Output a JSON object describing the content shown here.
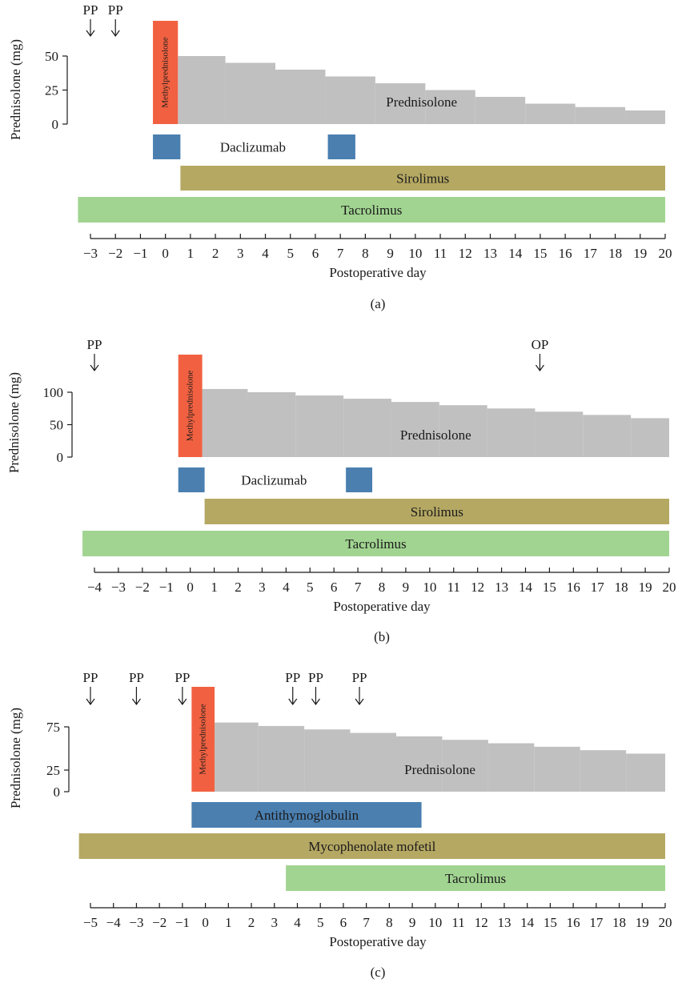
{
  "chart_data": [
    {
      "type": "timeline",
      "panel_label": "(a)",
      "ylabel": "Prednisolone (mg)",
      "xlabel": "Postoperative day",
      "y_ticks": [
        0,
        25,
        50
      ],
      "ylim": [
        0,
        60
      ],
      "x_ticks": [
        -3,
        -2,
        -1,
        0,
        1,
        2,
        3,
        4,
        5,
        6,
        7,
        8,
        9,
        10,
        11,
        12,
        13,
        14,
        15,
        16,
        17,
        18,
        19,
        20
      ],
      "x_tick_labels": [
        "−3",
        "−2",
        "−1",
        "0",
        "1",
        "2",
        "3",
        "4",
        "5",
        "6",
        "7",
        "8",
        "9",
        "10",
        "11",
        "12",
        "13",
        "14",
        "15",
        "16",
        "17",
        "18",
        "19",
        "20"
      ],
      "xlim": [
        -3.5,
        20
      ],
      "events": [
        {
          "label": "PP",
          "day": -3
        },
        {
          "label": "PP",
          "day": -2
        }
      ],
      "methylprednisolone": {
        "label": "Methylprednisolone",
        "start": -0.5,
        "end": 0.5
      },
      "prednisolone": {
        "label": "Prednisolone",
        "steps": [
          {
            "start": 0.5,
            "end": 2.4,
            "dose": 50
          },
          {
            "start": 2.4,
            "end": 4.4,
            "dose": 45
          },
          {
            "start": 4.4,
            "end": 6.4,
            "dose": 40
          },
          {
            "start": 6.4,
            "end": 8.4,
            "dose": 35
          },
          {
            "start": 8.4,
            "end": 10.4,
            "dose": 30
          },
          {
            "start": 10.4,
            "end": 12.4,
            "dose": 25
          },
          {
            "start": 12.4,
            "end": 14.4,
            "dose": 20
          },
          {
            "start": 14.4,
            "end": 16.4,
            "dose": 15
          },
          {
            "start": 16.4,
            "end": 18.4,
            "dose": 12.5
          },
          {
            "start": 18.4,
            "end": 20,
            "dose": 10
          }
        ]
      },
      "rows": [
        {
          "label": "Daclizumab",
          "segments": [
            {
              "start": -0.5,
              "end": 0.6
            },
            {
              "start": 6.5,
              "end": 7.6
            }
          ],
          "label_at": 3.5,
          "label_outside": true
        },
        {
          "label": "Sirolimus",
          "segments": [
            {
              "start": 0.6,
              "end": 20
            }
          ]
        },
        {
          "label": "Tacrolimus",
          "segments": [
            {
              "start": -3.5,
              "end": 20
            }
          ]
        }
      ]
    },
    {
      "type": "timeline",
      "panel_label": "(b)",
      "ylabel": "Prednisolone (mg)",
      "xlabel": "Postoperative day",
      "y_ticks": [
        0,
        50,
        100
      ],
      "ylim": [
        0,
        120
      ],
      "x_ticks": [
        -4,
        -3,
        -2,
        -1,
        0,
        1,
        2,
        3,
        4,
        5,
        6,
        7,
        8,
        9,
        10,
        11,
        12,
        13,
        14,
        15,
        16,
        17,
        18,
        19,
        20
      ],
      "x_tick_labels": [
        "−4",
        "−3",
        "−2",
        "−1",
        "0",
        "1",
        "2",
        "3",
        "4",
        "5",
        "6",
        "7",
        "8",
        "9",
        "10",
        "11",
        "12",
        "13",
        "14",
        "15",
        "16",
        "17",
        "18",
        "19",
        "20"
      ],
      "xlim": [
        -4.5,
        20
      ],
      "events": [
        {
          "label": "PP",
          "day": -4
        },
        {
          "label": "OP",
          "day": 14.6
        }
      ],
      "methylprednisolone": {
        "label": "Methylprednisolone",
        "start": -0.5,
        "end": 0.5
      },
      "prednisolone": {
        "label": "Prednisolone",
        "steps": [
          {
            "start": 0.5,
            "end": 2.4,
            "dose": 105
          },
          {
            "start": 2.4,
            "end": 4.4,
            "dose": 100
          },
          {
            "start": 4.4,
            "end": 6.4,
            "dose": 95
          },
          {
            "start": 6.4,
            "end": 8.4,
            "dose": 90
          },
          {
            "start": 8.4,
            "end": 10.4,
            "dose": 85
          },
          {
            "start": 10.4,
            "end": 12.4,
            "dose": 80
          },
          {
            "start": 12.4,
            "end": 14.4,
            "dose": 75
          },
          {
            "start": 14.4,
            "end": 16.4,
            "dose": 70
          },
          {
            "start": 16.4,
            "end": 18.4,
            "dose": 65
          },
          {
            "start": 18.4,
            "end": 20,
            "dose": 60
          }
        ]
      },
      "rows": [
        {
          "label": "Daclizumab",
          "segments": [
            {
              "start": -0.5,
              "end": 0.6
            },
            {
              "start": 6.5,
              "end": 7.6
            }
          ],
          "label_at": 3.5,
          "label_outside": true
        },
        {
          "label": "Sirolimus",
          "segments": [
            {
              "start": 0.6,
              "end": 20
            }
          ]
        },
        {
          "label": "Tacrolimus",
          "segments": [
            {
              "start": -4.5,
              "end": 20
            }
          ]
        }
      ]
    },
    {
      "type": "timeline",
      "panel_label": "(c)",
      "ylabel": "Prednisolone (mg)",
      "xlabel": "Postoperative day",
      "y_ticks": [
        0,
        25,
        75
      ],
      "ylim": [
        0,
        90
      ],
      "x_ticks": [
        -5,
        -4,
        -3,
        -2,
        -1,
        0,
        1,
        2,
        3,
        4,
        5,
        6,
        7,
        8,
        9,
        10,
        11,
        12,
        13,
        14,
        15,
        16,
        17,
        18,
        19,
        20
      ],
      "x_tick_labels": [
        "−5",
        "−4",
        "−3",
        "−2",
        "−1",
        "0",
        "1",
        "2",
        "3",
        "4",
        "5",
        "6",
        "7",
        "8",
        "9",
        "10",
        "11",
        "12",
        "13",
        "14",
        "15",
        "16",
        "17",
        "18",
        "19",
        "20"
      ],
      "xlim": [
        -5.5,
        20
      ],
      "events": [
        {
          "label": "PP",
          "day": -5
        },
        {
          "label": "PP",
          "day": -3
        },
        {
          "label": "PP",
          "day": -1
        },
        {
          "label": "PP",
          "day": 3.8
        },
        {
          "label": "PP",
          "day": 4.8
        },
        {
          "label": "PP",
          "day": 6.7
        }
      ],
      "methylprednisolone": {
        "label": "Methylprednisolone",
        "start": -0.6,
        "end": 0.4
      },
      "prednisolone": {
        "label": "Prednisolone",
        "steps": [
          {
            "start": 0.4,
            "end": 2.3,
            "dose": 80
          },
          {
            "start": 2.3,
            "end": 4.3,
            "dose": 76
          },
          {
            "start": 4.3,
            "end": 6.3,
            "dose": 72
          },
          {
            "start": 6.3,
            "end": 8.3,
            "dose": 68
          },
          {
            "start": 8.3,
            "end": 10.3,
            "dose": 64
          },
          {
            "start": 10.3,
            "end": 12.3,
            "dose": 60
          },
          {
            "start": 12.3,
            "end": 14.3,
            "dose": 56
          },
          {
            "start": 14.3,
            "end": 16.3,
            "dose": 52
          },
          {
            "start": 16.3,
            "end": 18.3,
            "dose": 48
          },
          {
            "start": 18.3,
            "end": 20,
            "dose": 44
          }
        ]
      },
      "rows": [
        {
          "label": "Antithymoglobulin",
          "segments": [
            {
              "start": -0.6,
              "end": 9.4
            }
          ]
        },
        {
          "label": "Mycophenolate mofetil",
          "segments": [
            {
              "start": -5.5,
              "end": 20
            }
          ]
        },
        {
          "label": "Tacrolimus",
          "segments": [
            {
              "start": 3.5,
              "end": 20
            }
          ]
        }
      ]
    }
  ],
  "colors": {
    "methylprednisolone": "#f16141",
    "prednisolone": "#c0c0c0",
    "daclizumab": "#4a7fb0",
    "antithymoglobulin": "#4a7fb0",
    "sirolimus": "#b5a863",
    "mycophenolate_mofetil": "#b5a863",
    "tacrolimus": "#a1d491",
    "axis": "#1a1a1a"
  }
}
